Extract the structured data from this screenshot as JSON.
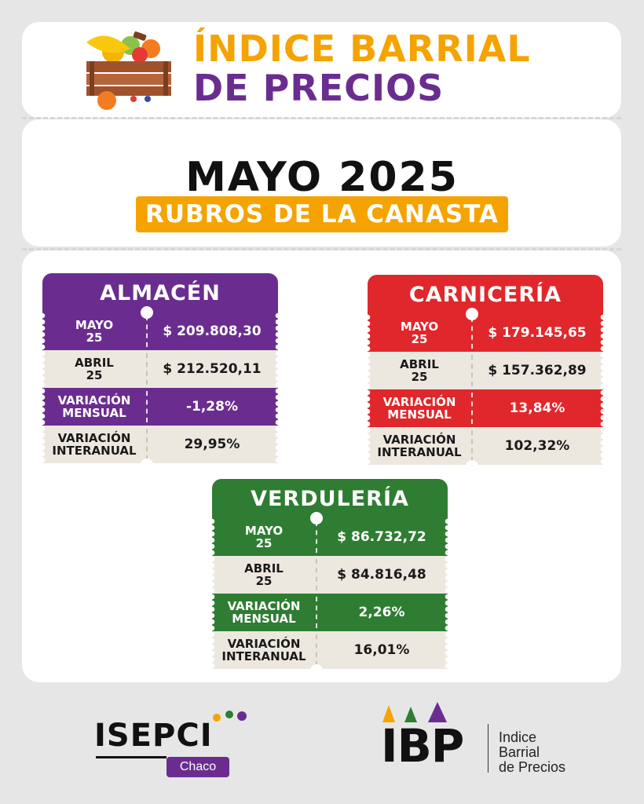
{
  "header": {
    "title_line1": "ÍNDICE BARRIAL",
    "title_line2": "DE PRECIOS"
  },
  "period": {
    "month": "MAYO 2025",
    "subtitle": "RUBROS DE LA CANASTA"
  },
  "colors": {
    "orange": "#f5a300",
    "purple": "#6a2d8f",
    "red": "#e0272b",
    "green": "#2e7d32",
    "light_row": "#ece8e0"
  },
  "cards": [
    {
      "title": "ALMACÉN",
      "color": "#6a2d8f",
      "rows": [
        {
          "label": "MAYO\n25",
          "value": "$ 209.808,30",
          "style": "color"
        },
        {
          "label": "ABRIL\n25",
          "value": "$ 212.520,11",
          "style": "light"
        },
        {
          "label": "VARIACIÓN\nMENSUAL",
          "value": "-1,28%",
          "style": "color"
        },
        {
          "label": "VARIACIÓN\nINTERANUAL",
          "value": "29,95%",
          "style": "light"
        }
      ]
    },
    {
      "title": "CARNICERÍA",
      "color": "#e0272b",
      "rows": [
        {
          "label": "MAYO\n25",
          "value": "$ 179.145,65",
          "style": "color"
        },
        {
          "label": "ABRIL\n25",
          "value": "$ 157.362,89",
          "style": "light"
        },
        {
          "label": "VARIACIÓN\nMENSUAL",
          "value": "13,84%",
          "style": "color"
        },
        {
          "label": "VARIACIÓN\nINTERANUAL",
          "value": "102,32%",
          "style": "light"
        }
      ]
    },
    {
      "title": "VERDULERÍA",
      "color": "#2e7d32",
      "rows": [
        {
          "label": "MAYO\n25",
          "value": "$ 86.732,72",
          "style": "color"
        },
        {
          "label": "ABRIL\n25",
          "value": "$ 84.816,48",
          "style": "light"
        },
        {
          "label": "VARIACIÓN\nMENSUAL",
          "value": "2,26%",
          "style": "color"
        },
        {
          "label": "VARIACIÓN\nINTERANUAL",
          "value": "16,01%",
          "style": "light"
        }
      ]
    }
  ],
  "logos": {
    "isepci": "ISEPCI",
    "isepci_region": "Chaco",
    "ibp_mark": "IBP",
    "ibp_line1": "Indice",
    "ibp_line2": "Barrial",
    "ibp_line3": "de Precios"
  }
}
